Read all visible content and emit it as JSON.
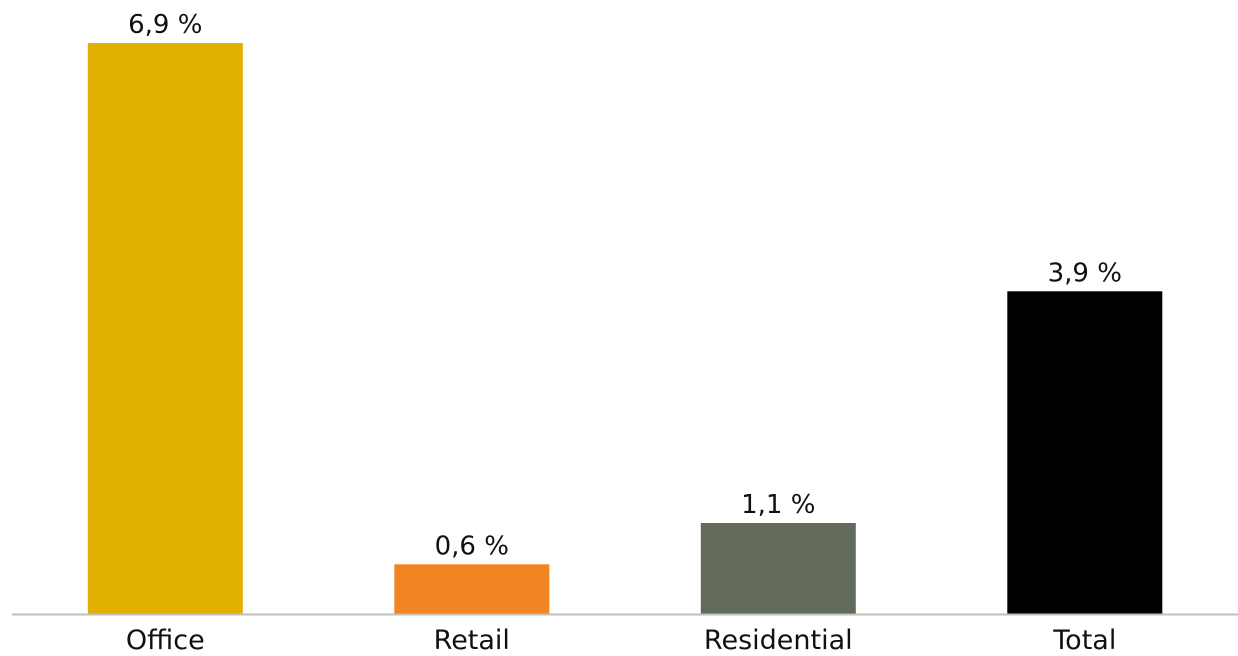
{
  "chart_data": {
    "type": "bar",
    "categories": [
      "Office",
      "Retail",
      "Residential",
      "Total"
    ],
    "values": [
      6.9,
      0.6,
      1.1,
      3.9
    ],
    "value_labels": [
      "6,9 %",
      "0,6 %",
      "1,1 %",
      "3,9 %"
    ],
    "colors": [
      "#E2B000",
      "#F08522",
      "#626B5B",
      "#000000"
    ],
    "ylim": [
      0,
      6.9
    ],
    "grid": false,
    "legend": "none",
    "baseline_color": "#BFBFBF"
  }
}
